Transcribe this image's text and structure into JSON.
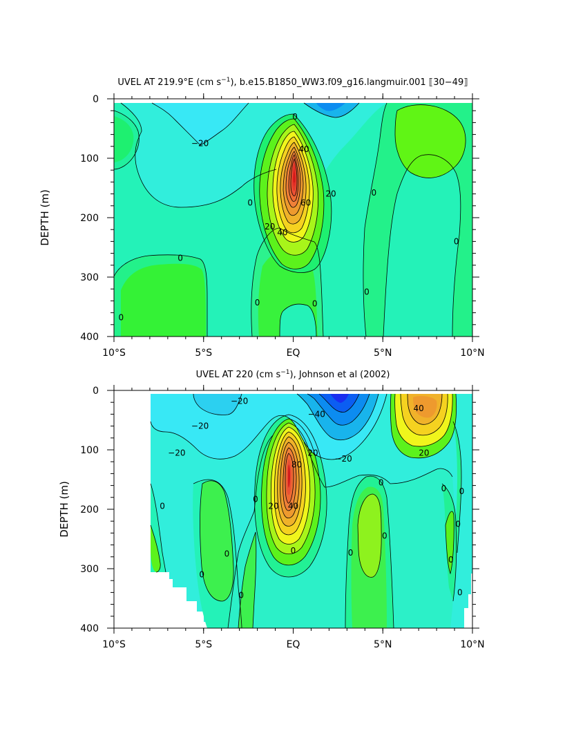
{
  "chart_data": [
    {
      "type": "heatmap",
      "title_main": "UVEL AT 219.9°E (cm s",
      "title_units_sup": "−1",
      "title_rest": "), b.e15.B1850_WW3.f09_g16.langmuir.001 ⟦30−49⟧",
      "xlabel": "",
      "ylabel": "DEPTH (m)",
      "x_tick_labels": [
        "10°S",
        "5°S",
        "EQ",
        "5°N",
        "10°N"
      ],
      "x_tick_values": [
        -10,
        -5,
        0,
        5,
        10
      ],
      "y_tick_labels": [
        "0",
        "100",
        "200",
        "300",
        "400"
      ],
      "y_tick_values": [
        0,
        100,
        200,
        300,
        400
      ],
      "xlim": [
        -10,
        10
      ],
      "ylim": [
        400,
        0
      ],
      "contour_interval": 10,
      "features": [
        {
          "name": "equatorial undercurrent core",
          "lat": 0.0,
          "depth": 140,
          "value": 100
        },
        {
          "name": "westward surface flow",
          "lat": -3.5,
          "depth": 40,
          "value": -20
        },
        {
          "name": "westward surface jet",
          "lat": 1.8,
          "depth": 10,
          "value": -20
        },
        {
          "name": "eastward countercurrent",
          "lat": 7.0,
          "depth": 80,
          "value": 20
        },
        {
          "name": "deep eastward flow",
          "lat": -7.0,
          "depth": 350,
          "value": 10
        }
      ],
      "contour_labels": [
        {
          "text": "0",
          "lat": 0.1,
          "depth": 30
        },
        {
          "text": "−20",
          "lat": -5.2,
          "depth": 75
        },
        {
          "text": "40",
          "lat": 0.6,
          "depth": 85
        },
        {
          "text": "20",
          "lat": 2.1,
          "depth": 160
        },
        {
          "text": "60",
          "lat": 0.7,
          "depth": 175
        },
        {
          "text": "40",
          "lat": -0.6,
          "depth": 225
        },
        {
          "text": "20",
          "lat": -1.3,
          "depth": 215
        },
        {
          "text": "0",
          "lat": -2.4,
          "depth": 175
        },
        {
          "text": "0",
          "lat": -6.3,
          "depth": 268
        },
        {
          "text": "0",
          "lat": -2.0,
          "depth": 343
        },
        {
          "text": "0",
          "lat": 1.2,
          "depth": 345
        },
        {
          "text": "0",
          "lat": 4.5,
          "depth": 158
        },
        {
          "text": "0",
          "lat": 4.1,
          "depth": 325
        },
        {
          "text": "0",
          "lat": 9.1,
          "depth": 240
        },
        {
          "text": "0",
          "lat": -9.6,
          "depth": 368
        }
      ]
    },
    {
      "type": "heatmap",
      "title_main": "UVEL AT 220 (cm s",
      "title_units_sup": "−1",
      "title_rest": "), Johnson et al (2002)",
      "xlabel": "",
      "ylabel": "DEPTH (m)",
      "x_tick_labels": [
        "10°S",
        "5°S",
        "EQ",
        "5°N",
        "10°N"
      ],
      "x_tick_values": [
        -10,
        -5,
        0,
        5,
        10
      ],
      "y_tick_labels": [
        "0",
        "100",
        "200",
        "300",
        "400"
      ],
      "y_tick_values": [
        0,
        100,
        200,
        300,
        400
      ],
      "xlim": [
        -10,
        10
      ],
      "ylim": [
        400,
        0
      ],
      "contour_interval": 10,
      "features": [
        {
          "name": "equatorial undercurrent core",
          "lat": -0.2,
          "depth": 110,
          "value": 100
        },
        {
          "name": "south equatorial current",
          "lat": 2.8,
          "depth": 20,
          "value": -60
        },
        {
          "name": "north equatorial countercurrent",
          "lat": 7.0,
          "depth": 60,
          "value": 50
        },
        {
          "name": "westward flow south",
          "lat": -5.5,
          "depth": 60,
          "value": -20
        },
        {
          "name": "subsurface countercurrent south",
          "lat": -5.0,
          "depth": 210,
          "value": 10
        },
        {
          "name": "subsurface countercurrent north",
          "lat": 4.3,
          "depth": 220,
          "value": 20
        }
      ],
      "contour_labels": [
        {
          "text": "−20",
          "lat": -3.0,
          "depth": 18
        },
        {
          "text": "−40",
          "lat": 1.3,
          "depth": 40
        },
        {
          "text": "−20",
          "lat": -5.2,
          "depth": 60
        },
        {
          "text": "−20",
          "lat": -6.5,
          "depth": 105
        },
        {
          "text": "−20",
          "lat": 2.8,
          "depth": 115
        },
        {
          "text": "40",
          "lat": 7.0,
          "depth": 30
        },
        {
          "text": "20",
          "lat": 7.3,
          "depth": 105
        },
        {
          "text": "80",
          "lat": 0.2,
          "depth": 125
        },
        {
          "text": "20",
          "lat": 1.1,
          "depth": 105
        },
        {
          "text": "40",
          "lat": 0.0,
          "depth": 195
        },
        {
          "text": "20",
          "lat": -1.1,
          "depth": 195
        },
        {
          "text": "0",
          "lat": 4.9,
          "depth": 155
        },
        {
          "text": "0",
          "lat": -2.1,
          "depth": 183
        },
        {
          "text": "0",
          "lat": -7.3,
          "depth": 195
        },
        {
          "text": "0",
          "lat": -3.7,
          "depth": 275
        },
        {
          "text": "0",
          "lat": 0.0,
          "depth": 270
        },
        {
          "text": "0",
          "lat": 3.2,
          "depth": 273
        },
        {
          "text": "0",
          "lat": 5.1,
          "depth": 245
        },
        {
          "text": "0",
          "lat": -5.1,
          "depth": 310
        },
        {
          "text": "0",
          "lat": -2.9,
          "depth": 345
        },
        {
          "text": "0",
          "lat": 8.8,
          "depth": 285
        },
        {
          "text": "0",
          "lat": 9.2,
          "depth": 225
        },
        {
          "text": "0",
          "lat": 9.4,
          "depth": 170
        },
        {
          "text": "0",
          "lat": 9.3,
          "depth": 340
        },
        {
          "text": "0",
          "lat": 8.4,
          "depth": 165
        }
      ]
    }
  ]
}
